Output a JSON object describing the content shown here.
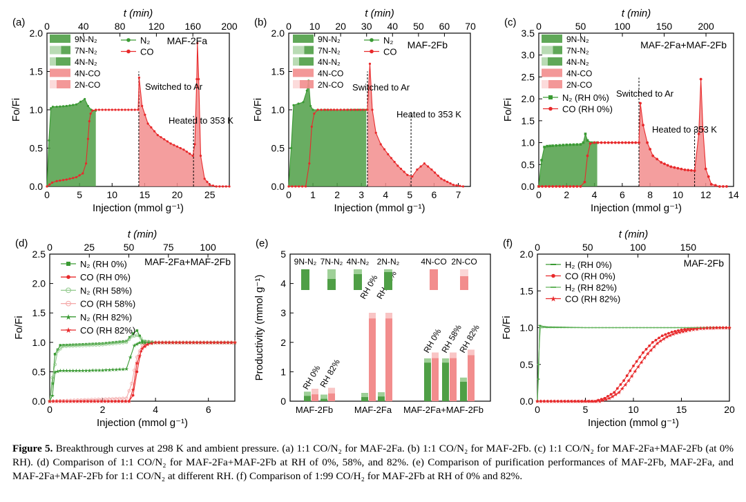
{
  "colors": {
    "green": "#3a9a33",
    "red": "#e8292b",
    "green_fill": "#4f9f46",
    "red_fill": "#f28d8d"
  },
  "caption": {
    "label": "Figure 5.",
    "text": "Breakthrough curves at 298 K and ambient pressure. (a) 1:1 CO/N₂ for MAF-2Fa. (b) 1:1 CO/N₂ for MAF-2Fb. (c) 1:1 CO/N₂ for MAF-2Fa+MAF-2Fb (at 0% RH). (d) Comparison of 1:1 CO/N₂ for MAF-2Fa+MAF-2Fb at RH of 0%, 58%, and 82%. (e) Comparison of purification performances of MAF-2Fb, MAF-2Fa, and MAF-2Fa+MAF-2Fb for 1:1 CO/N₂ at different RH. (f) Comparison of 1:99 CO/H₂ for MAF-2Fb at RH of 0% and 82%."
  },
  "chart_data": [
    {
      "id": "a",
      "panel_label": "(a)",
      "type": "line",
      "title": "MAF-2Fa",
      "xlabel": "Injection (mmol g⁻¹)",
      "ylabel": "Fo/Fi",
      "top_xlabel": "t (min)",
      "xlim": [
        0,
        28
      ],
      "ylim": [
        0,
        2.0
      ],
      "top_xlim": [
        0,
        200
      ],
      "xticks": [
        "0",
        "5",
        "10",
        "15",
        "20",
        "25"
      ],
      "yticks": [
        "0.0",
        "0.5",
        "1.0",
        "1.5",
        "2.0"
      ],
      "top_ticks": [
        "0",
        "40",
        "80",
        "120",
        "160",
        "200"
      ],
      "legend_fill": [
        "9N-N₂",
        "7N-N₂",
        "4N-N₂",
        "4N-CO",
        "2N-CO"
      ],
      "legend_line": [
        "N₂",
        "CO"
      ],
      "annotations": [
        "Switched to Ar",
        "Heated to 353 K"
      ],
      "event_lines_x": [
        14.1,
        22.5
      ],
      "series": [
        {
          "name": "N₂",
          "x": [
            0,
            0.3,
            0.6,
            0.9,
            1.5,
            3,
            4.5,
            5.8,
            6.3,
            6.8,
            7.5
          ],
          "y": [
            0,
            0.6,
            1.02,
            1.04,
            1.04,
            1.05,
            1.07,
            1.14,
            1.05,
            1.0,
            0.99
          ]
        },
        {
          "name": "CO",
          "x": [
            0,
            0.8,
            1.5,
            3,
            4.5,
            5.5,
            6.0,
            6.3,
            6.5,
            6.7,
            7.0,
            7.5,
            9,
            11,
            13,
            14.0,
            14.15,
            14.6,
            15.5,
            17,
            19,
            21,
            22.4,
            22.7,
            23.0,
            23.1,
            23.3,
            23.6,
            24.2,
            25,
            26,
            28
          ],
          "y": [
            0,
            0.05,
            0.07,
            0.09,
            0.12,
            0.17,
            0.3,
            0.62,
            0.85,
            0.95,
            0.99,
            1.0,
            1.0,
            1.0,
            1.0,
            1.0,
            1.42,
            1.05,
            0.82,
            0.67,
            0.56,
            0.48,
            0.4,
            0.55,
            1.4,
            1.87,
            1.4,
            0.4,
            0.1,
            0.02,
            0.0,
            0.0
          ]
        }
      ]
    },
    {
      "id": "b",
      "panel_label": "(b)",
      "type": "line",
      "title": "MAF-2Fb",
      "xlabel": "Injection (mmol g⁻¹)",
      "ylabel": "Fo/Fi",
      "top_xlabel": "t (min)",
      "xlim": [
        0,
        7.5
      ],
      "ylim": [
        0,
        2.0
      ],
      "top_xlim": [
        0,
        70
      ],
      "xticks": [
        "0",
        "1",
        "2",
        "3",
        "4",
        "5",
        "6",
        "7"
      ],
      "yticks": [
        "0.0",
        "0.5",
        "1.0",
        "1.5",
        "2.0"
      ],
      "top_ticks": [
        "0",
        "10",
        "20",
        "30",
        "40",
        "50",
        "60",
        "70"
      ],
      "legend_fill": [
        "9N-N₂",
        "7N-N₂",
        "4N-N₂",
        "4N-CO",
        "2N-CO"
      ],
      "legend_line": [
        "N₂",
        "CO"
      ],
      "annotations": [
        "Switched to Ar",
        "Heated to 353 K"
      ],
      "event_lines_x": [
        3.25,
        5.05
      ],
      "series": [
        {
          "name": "N₂",
          "x": [
            0,
            0.1,
            0.2,
            0.4,
            0.6,
            0.75,
            0.82,
            0.9,
            1.0,
            1.2,
            2,
            3.2
          ],
          "y": [
            0,
            0.5,
            1.06,
            1.08,
            1.1,
            1.25,
            1.38,
            1.05,
            1.0,
            1.0,
            1.0,
            1.0
          ]
        },
        {
          "name": "CO",
          "x": [
            0,
            0.7,
            0.85,
            0.95,
            1.05,
            1.2,
            1.5,
            2,
            3.25,
            3.35,
            3.45,
            3.6,
            3.8,
            4.1,
            4.5,
            4.9,
            5.1,
            5.3,
            5.6,
            5.9,
            6.3,
            6.8,
            7.2
          ],
          "y": [
            0,
            0,
            0.3,
            0.78,
            0.95,
            1.0,
            1.0,
            1.0,
            1.0,
            1.6,
            1.0,
            0.7,
            0.55,
            0.42,
            0.27,
            0.15,
            0.13,
            0.22,
            0.3,
            0.22,
            0.1,
            0.02,
            0.0
          ]
        }
      ]
    },
    {
      "id": "c",
      "panel_label": "(c)",
      "type": "line",
      "title": "MAF-2Fa+MAF-2Fb",
      "xlabel": "Injection (mmol g⁻¹)",
      "ylabel": "Fo/Fi",
      "top_xlabel": "t (min)",
      "xlim": [
        0,
        14
      ],
      "ylim": [
        0,
        3.5
      ],
      "top_xlim": [
        0,
        233
      ],
      "xticks": [
        "0",
        "2",
        "4",
        "6",
        "8",
        "10",
        "12",
        "14"
      ],
      "yticks": [
        "0.0",
        "0.5",
        "1.0",
        "1.5",
        "2.0",
        "2.5",
        "3.0",
        "3.5"
      ],
      "top_ticks": [
        "0",
        "50",
        "100",
        "150",
        "200"
      ],
      "legend_fill": [
        "9N-N₂",
        "7N-N₂",
        "4N-N₂",
        "4N-CO",
        "2N-CO"
      ],
      "legend_line": [
        "N₂ (RH 0%)",
        "CO (RH 0%)"
      ],
      "annotations": [
        "Switched to Ar",
        "Heated to 353 K"
      ],
      "event_lines_x": [
        7.2,
        11.2
      ],
      "series": [
        {
          "name": "N₂ (RH 0%)",
          "x": [
            0,
            0.2,
            0.4,
            0.6,
            1.0,
            2.0,
            3.0,
            3.2,
            3.35,
            3.5,
            3.8,
            4.2
          ],
          "y": [
            0,
            0.6,
            0.9,
            0.92,
            0.93,
            0.95,
            0.96,
            1.0,
            1.2,
            1.05,
            1.0,
            1.0
          ]
        },
        {
          "name": "CO (RH 0%)",
          "x": [
            0,
            3.0,
            3.3,
            3.5,
            3.7,
            4.0,
            5,
            6,
            7.2,
            7.3,
            7.5,
            7.8,
            8.2,
            8.8,
            9.5,
            10.5,
            11.2,
            11.5,
            11.65,
            11.8,
            12.0,
            12.4,
            13,
            13.5
          ],
          "y": [
            0,
            0,
            0.1,
            0.7,
            0.98,
            1.0,
            1.0,
            1.0,
            1.0,
            1.9,
            1.4,
            1.0,
            0.7,
            0.55,
            0.45,
            0.38,
            0.36,
            1.2,
            2.45,
            1.3,
            0.4,
            0.05,
            0.0,
            0.0
          ]
        }
      ]
    },
    {
      "id": "d",
      "panel_label": "(d)",
      "type": "line",
      "title": "MAF-2Fa+MAF-2Fb",
      "xlabel": "Injection (mmol g⁻¹)",
      "ylabel": "Fo/Fi",
      "top_xlabel": "t (min)",
      "xlim": [
        0,
        7
      ],
      "ylim": [
        0,
        2.5
      ],
      "top_xlim": [
        0,
        117
      ],
      "xticks": [
        "0",
        "2",
        "4",
        "6"
      ],
      "yticks": [
        "0.0",
        "0.5",
        "1.0",
        "1.5",
        "2.0",
        "2.5"
      ],
      "top_ticks": [
        "0",
        "25",
        "50",
        "75",
        "100"
      ],
      "series": [
        {
          "name": "N₂ (RH 0%)",
          "x": [
            0,
            0.1,
            0.2,
            0.4,
            1.0,
            2.0,
            2.9,
            3.15,
            3.3,
            3.5,
            4,
            7
          ],
          "y": [
            0,
            0.3,
            0.8,
            0.95,
            0.96,
            0.98,
            1.02,
            1.15,
            1.2,
            1.02,
            1.0,
            1.0
          ]
        },
        {
          "name": "CO (RH 0%)",
          "x": [
            0,
            3.0,
            3.15,
            3.3,
            3.45,
            3.6,
            4,
            7
          ],
          "y": [
            0,
            0,
            0.1,
            0.5,
            0.85,
            0.97,
            1.0,
            1.0
          ]
        },
        {
          "name": "N₂ (RH 58%)",
          "x": [
            0,
            0.1,
            0.3,
            0.5,
            1.0,
            2.0,
            2.9,
            3.1,
            3.3,
            3.6,
            4,
            7
          ],
          "y": [
            0,
            0.4,
            0.85,
            0.93,
            0.94,
            0.96,
            1.0,
            1.1,
            1.12,
            1.02,
            1.0,
            1.0
          ]
        },
        {
          "name": "CO (RH 58%)",
          "x": [
            0,
            2.9,
            3.1,
            3.3,
            3.5,
            3.7,
            4,
            7
          ],
          "y": [
            0,
            0.05,
            0.3,
            0.75,
            0.95,
            1.0,
            1.0,
            1.0
          ]
        },
        {
          "name": "N₂ (RH 82%)",
          "x": [
            0,
            0.1,
            0.2,
            0.4,
            1.0,
            2.0,
            2.9,
            3.2,
            3.4,
            3.6,
            4,
            7
          ],
          "y": [
            0,
            0.1,
            0.5,
            0.52,
            0.52,
            0.53,
            0.55,
            0.95,
            1.0,
            1.0,
            1.0,
            1.0
          ]
        },
        {
          "name": "CO (RH 82%)",
          "x": [
            0,
            3.0,
            3.15,
            3.3,
            3.5,
            3.7,
            4,
            7
          ],
          "y": [
            0,
            0,
            0.2,
            0.65,
            0.9,
            0.97,
            1.0,
            1.0
          ]
        }
      ]
    },
    {
      "id": "e",
      "panel_label": "(e)",
      "type": "bar",
      "ylabel": "Productivity (mmol g⁻¹)",
      "ylim": [
        0,
        5
      ],
      "yticks": [
        "0",
        "1",
        "2",
        "3",
        "4",
        "5"
      ],
      "groups": [
        "MAF-2Fb",
        "MAF-2Fa",
        "MAF-2Fa+MAF-2Fb"
      ],
      "legend_swatches": [
        "9N-N₂",
        "7N-N₂",
        "4N-N₂",
        "2N-N₂",
        "4N-CO",
        "2N-CO"
      ],
      "bar_labels": [
        "RH 0%",
        "RH 82%",
        "RH 0%",
        "RH 82%",
        "RH 0%",
        "RH 58%",
        "RH 82%"
      ],
      "bars": [
        {
          "group": "MAF-2Fb",
          "rh": "RH 0%",
          "N2": 0.32,
          "CO": 0.42
        },
        {
          "group": "MAF-2Fb",
          "rh": "RH 82%",
          "N2": 0.22,
          "CO": 0.45
        },
        {
          "group": "MAF-2Fa",
          "rh": "RH 0%",
          "N2": 0.28,
          "CO": 3.0
        },
        {
          "group": "MAF-2Fa",
          "rh": "RH 82%",
          "N2": 0.3,
          "CO": 3.0
        },
        {
          "group": "MAF-2Fa+MAF-2Fb",
          "rh": "RH 0%",
          "N2": 1.45,
          "CO": 1.65
        },
        {
          "group": "MAF-2Fa+MAF-2Fb",
          "rh": "RH 58%",
          "N2": 1.45,
          "CO": 1.65
        },
        {
          "group": "MAF-2Fa+MAF-2Fb",
          "rh": "RH 82%",
          "N2": 0.8,
          "CO": 1.75
        }
      ]
    },
    {
      "id": "f",
      "panel_label": "(f)",
      "type": "line",
      "title": "MAF-2Fb",
      "xlabel": "Injection (mmol g⁻¹)",
      "ylabel": "Fo/Fi",
      "top_xlabel": "t (min)",
      "xlim": [
        0,
        20
      ],
      "ylim": [
        0,
        2.0
      ],
      "top_xlim": [
        0,
        191
      ],
      "xticks": [
        "0",
        "5",
        "10",
        "15",
        "20"
      ],
      "yticks": [
        "0.0",
        "0.5",
        "1.0",
        "1.5",
        "2.0"
      ],
      "top_ticks": [
        "0",
        "50",
        "100",
        "150"
      ],
      "series": [
        {
          "name": "H₂ (RH 0%)",
          "x": [
            0,
            0.1,
            0.25,
            0.4,
            1,
            5,
            10,
            15,
            20
          ],
          "y": [
            0,
            0.3,
            1.03,
            1.02,
            1.01,
            1.0,
            1.0,
            1.0,
            1.0
          ]
        },
        {
          "name": "CO (RH 0%)",
          "x": [
            0,
            6,
            7,
            8,
            9,
            10,
            11,
            12,
            13,
            14,
            15,
            16,
            18,
            20
          ],
          "y": [
            0,
            0,
            0.04,
            0.12,
            0.28,
            0.48,
            0.66,
            0.8,
            0.89,
            0.94,
            0.97,
            0.99,
            1.0,
            1.0
          ]
        },
        {
          "name": "H₂ (RH 82%)",
          "x": [
            0,
            0.1,
            0.3,
            0.5,
            1,
            5,
            10,
            15,
            20
          ],
          "y": [
            0,
            0.5,
            1.0,
            1.0,
            1.0,
            1.0,
            1.0,
            1.0,
            1.0
          ]
        },
        {
          "name": "CO (RH 82%)",
          "x": [
            0,
            6.5,
            7.5,
            8.5,
            9.5,
            10.5,
            11.5,
            12.5,
            13.5,
            14.5,
            15.5,
            17,
            19,
            20
          ],
          "y": [
            0,
            0,
            0.04,
            0.12,
            0.28,
            0.47,
            0.65,
            0.79,
            0.88,
            0.93,
            0.96,
            0.99,
            1.0,
            1.0
          ]
        }
      ]
    }
  ]
}
